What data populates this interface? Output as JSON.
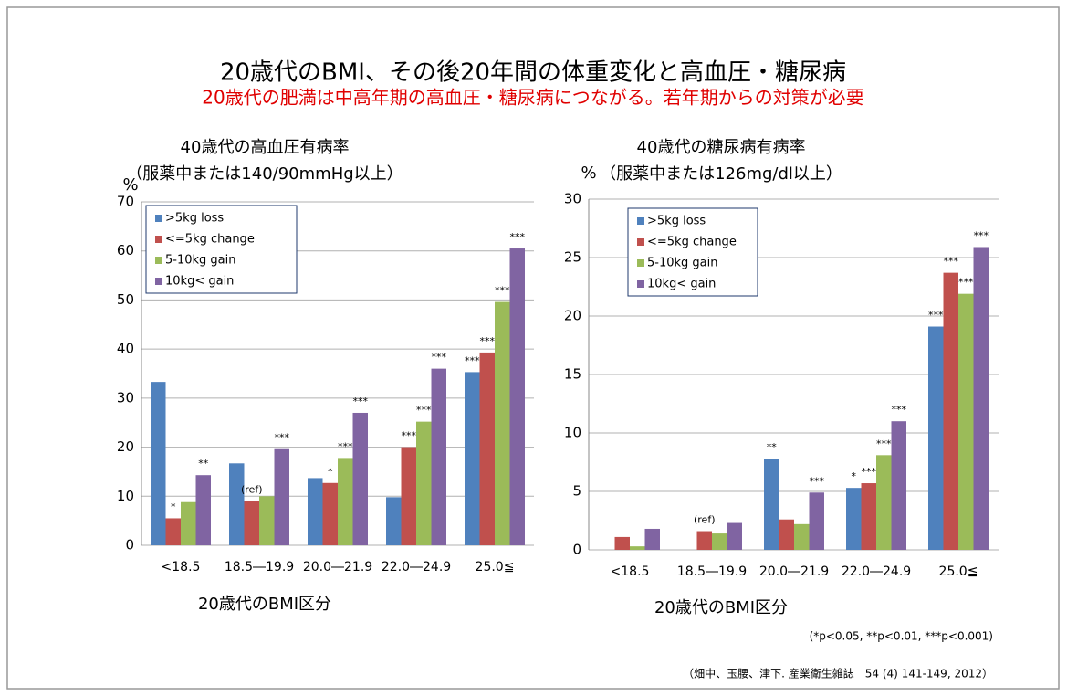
{
  "header": {
    "title": "20歳代のBMI、その後20年間の体重変化と高血圧・糖尿病",
    "subtitle": "20歳代の肥満は中高年期の高血圧・糖尿病につながる。若年期からの対策が必要"
  },
  "chart_data": [
    {
      "type": "bar",
      "title": "40歳代の高血圧有病率",
      "subtitle": "（服薬中または140/90mmHg以上）",
      "ylabel": "%",
      "xlabel": "20歳代のBMI区分",
      "categories": [
        "<18.5",
        "18.5―19.9",
        "20.0―21.9",
        "22.0―24.9",
        "25.0≦"
      ],
      "series": [
        {
          "name": ">5kg loss",
          "color": "#4f81bd",
          "values": [
            33.3,
            16.7,
            13.7,
            9.8,
            35.3
          ],
          "significance": [
            null,
            null,
            null,
            null,
            "***"
          ]
        },
        {
          "name": "<=5kg change",
          "color": "#c0504d",
          "values": [
            5.5,
            9.0,
            12.7,
            20.0,
            39.3
          ],
          "significance": [
            "*",
            "(ref)",
            "*",
            "***",
            "***"
          ]
        },
        {
          "name": "5-10kg gain",
          "color": "#9bbb59",
          "values": [
            8.8,
            10.0,
            17.8,
            25.2,
            49.6
          ],
          "significance": [
            null,
            null,
            "***",
            "***",
            "***"
          ]
        },
        {
          "name": "10kg< gain",
          "color": "#8064a2",
          "values": [
            14.3,
            19.6,
            27.0,
            36.0,
            60.5
          ],
          "significance": [
            "**",
            "***",
            "***",
            "***",
            "***"
          ]
        }
      ],
      "ylim": [
        0,
        70
      ],
      "yticks": [
        0,
        10,
        20,
        30,
        40,
        50,
        60,
        70
      ],
      "grid": true,
      "legend": "upper left"
    },
    {
      "type": "bar",
      "title": "40歳代の糖尿病有病率",
      "subtitle": "（服薬中または126mg/dl以上）",
      "ylabel": "%",
      "xlabel": "20歳代のBMI区分",
      "categories": [
        "<18.5",
        "18.5―19.9",
        "20.0―21.9",
        "22.0―24.9",
        "25.0≦"
      ],
      "series": [
        {
          "name": ">5kg loss",
          "color": "#4f81bd",
          "values": [
            0,
            0,
            7.8,
            5.3,
            19.1
          ],
          "significance": [
            null,
            null,
            "**",
            "*",
            "***"
          ]
        },
        {
          "name": "<=5kg change",
          "color": "#c0504d",
          "values": [
            1.1,
            1.6,
            2.6,
            5.7,
            23.7
          ],
          "significance": [
            null,
            "(ref)",
            null,
            "***",
            "***"
          ]
        },
        {
          "name": "5-10kg gain",
          "color": "#9bbb59",
          "values": [
            0.3,
            1.4,
            2.2,
            8.1,
            21.9
          ],
          "significance": [
            null,
            null,
            null,
            "***",
            "***"
          ]
        },
        {
          "name": "10kg< gain",
          "color": "#8064a2",
          "values": [
            1.8,
            2.3,
            4.9,
            11.0,
            25.9
          ],
          "significance": [
            null,
            null,
            "***",
            "***",
            "***"
          ]
        }
      ],
      "ylim": [
        0,
        30
      ],
      "yticks": [
        0,
        5,
        10,
        15,
        20,
        25,
        30
      ],
      "grid": true,
      "legend": "upper left"
    }
  ],
  "footnotes": {
    "significance": "(*p<0.05, **p<0.01, ***p<0.001)",
    "source": "（畑中、玉腰、津下. 産業衛生雑誌　54 (4) 141-149, 2012）"
  }
}
